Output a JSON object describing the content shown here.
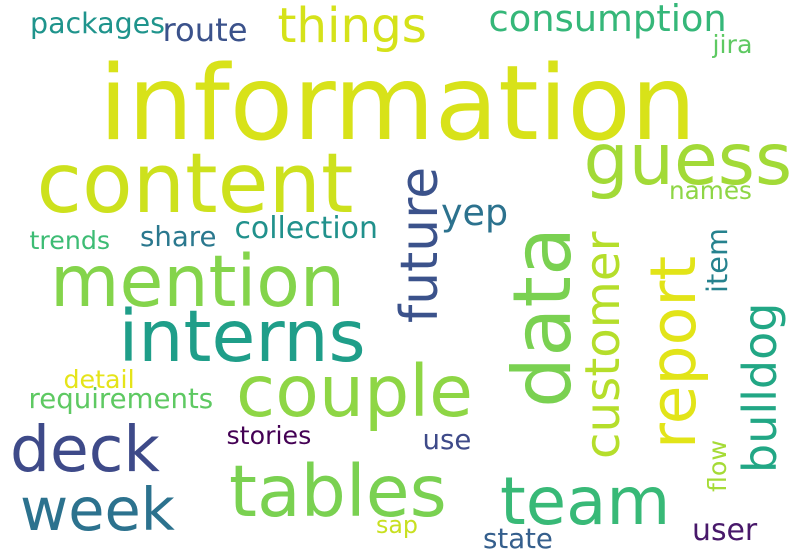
{
  "background": "#ffffff",
  "words": [
    {
      "text": "information",
      "color": "#d8e219"
    },
    {
      "text": "content",
      "color": "#cde11d"
    },
    {
      "text": "data",
      "color": "#7ad151"
    },
    {
      "text": "mention",
      "color": "#84d44b"
    },
    {
      "text": "tables",
      "color": "#7ad151"
    },
    {
      "text": "interns",
      "color": "#1f9e89"
    },
    {
      "text": "couple",
      "color": "#8ed645"
    },
    {
      "text": "guess",
      "color": "#a2da37"
    },
    {
      "text": "report",
      "color": "#e2e418"
    },
    {
      "text": "team",
      "color": "#38b977"
    },
    {
      "text": "deck",
      "color": "#3e4a89"
    },
    {
      "text": "week",
      "color": "#2c728e"
    },
    {
      "text": "things",
      "color": "#d5e21a"
    },
    {
      "text": "future",
      "color": "#3b528b"
    },
    {
      "text": "customer",
      "color": "#b5de2b"
    },
    {
      "text": "bulldog",
      "color": "#22a785"
    },
    {
      "text": "consumption",
      "color": "#35b779"
    },
    {
      "text": "yep",
      "color": "#2c728e"
    },
    {
      "text": "collection",
      "color": "#21918c"
    },
    {
      "text": "packages",
      "color": "#1f948c"
    },
    {
      "text": "route",
      "color": "#3b528b"
    },
    {
      "text": "jira",
      "color": "#5ec962"
    },
    {
      "text": "names",
      "color": "#8ed645"
    },
    {
      "text": "item",
      "color": "#26828e"
    },
    {
      "text": "trends",
      "color": "#3dbc74"
    },
    {
      "text": "share",
      "color": "#2a788e"
    },
    {
      "text": "detail",
      "color": "#e5e419"
    },
    {
      "text": "requirements",
      "color": "#5ec962"
    },
    {
      "text": "stories",
      "color": "#440154"
    },
    {
      "text": "use",
      "color": "#3e4a89"
    },
    {
      "text": "flow",
      "color": "#a5db36"
    },
    {
      "text": "sap",
      "color": "#c8e020"
    },
    {
      "text": "state",
      "color": "#355f8d"
    },
    {
      "text": "user",
      "color": "#48186a"
    }
  ]
}
